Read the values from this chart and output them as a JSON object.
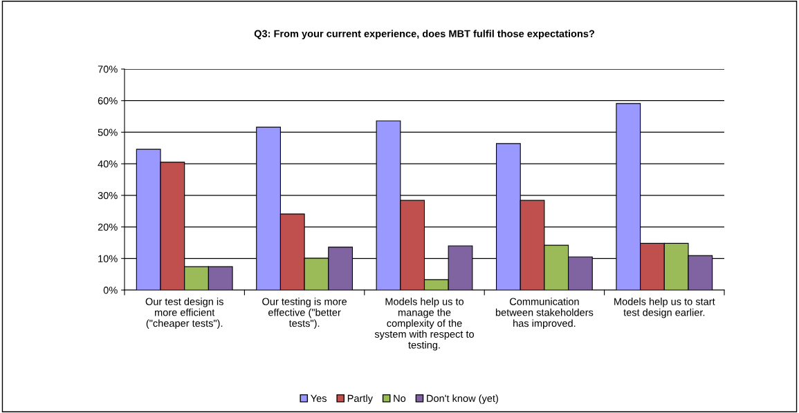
{
  "chart_data": {
    "type": "bar",
    "title": "Q3: From your current experience, does MBT fulfil those expectations?",
    "categories": [
      "Our test design is\nmore efficient\n(\"cheaper tests\").",
      "Our testing is more\neffective (\"better\ntests\").",
      "Models help us to\nmanage the\ncomplexity of the\nsystem with respect to\ntesting.",
      "Communication\nbetween stakeholders\nhas improved.",
      "Models help us to start\ntest design earlier."
    ],
    "series": [
      {
        "name": "Yes",
        "color": "#9999ff",
        "values": [
          44.6,
          51.6,
          53.6,
          46.4,
          59.1
        ]
      },
      {
        "name": "Partly",
        "color": "#c0504d",
        "values": [
          40.5,
          24.1,
          28.4,
          28.4,
          14.8
        ]
      },
      {
        "name": "No",
        "color": "#9bbb59",
        "values": [
          7.4,
          10.1,
          3.3,
          14.2,
          14.8
        ]
      },
      {
        "name": "Don't know (yet)",
        "color": "#8064a2",
        "values": [
          7.4,
          13.6,
          14.0,
          10.5,
          10.9
        ]
      }
    ],
    "ylim": [
      0,
      70
    ],
    "yticks": [
      {
        "value": 0,
        "label": "0%"
      },
      {
        "value": 10,
        "label": "10%"
      },
      {
        "value": 20,
        "label": "20%"
      },
      {
        "value": 30,
        "label": "30%"
      },
      {
        "value": 40,
        "label": "40%"
      },
      {
        "value": 50,
        "label": "50%"
      },
      {
        "value": 60,
        "label": "60%"
      },
      {
        "value": 70,
        "label": "70%"
      }
    ],
    "grid": "y",
    "legend": "bottom"
  }
}
